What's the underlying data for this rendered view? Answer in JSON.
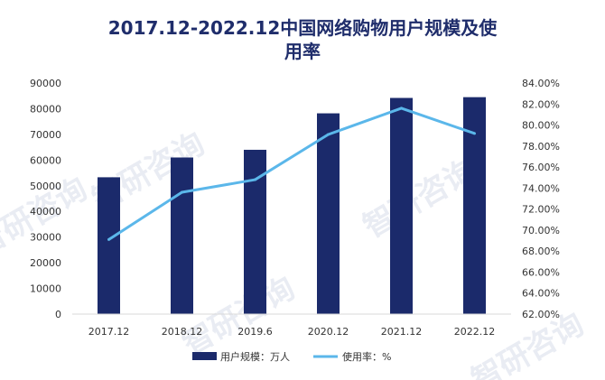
{
  "chart_data": {
    "type": "bar+line",
    "title": "2017.12-2022.12中国网络购物用户规模及使用率",
    "title_lines": [
      "2017.12-2022.12中国网络购物用户规模及使",
      "用率"
    ],
    "categories": [
      "2017.12",
      "2018.12",
      "2019.6",
      "2020.12",
      "2021.12",
      "2022.12"
    ],
    "series": [
      {
        "name": "用户规模：万人",
        "type": "bar",
        "axis": "left",
        "color": "#1b2a6b",
        "values": [
          53300,
          61000,
          64000,
          78200,
          84200,
          84500
        ]
      },
      {
        "name": "使用率：%",
        "type": "line",
        "axis": "right",
        "color": "#5bb7ea",
        "values": [
          69.1,
          73.6,
          74.8,
          79.1,
          81.6,
          79.2
        ]
      }
    ],
    "y_left": {
      "min": 0,
      "max": 90000,
      "step": 10000,
      "ticks": [
        "0",
        "10000",
        "20000",
        "30000",
        "40000",
        "50000",
        "60000",
        "70000",
        "80000",
        "90000"
      ]
    },
    "y_right": {
      "min": 62,
      "max": 84,
      "step": 2,
      "ticks": [
        "62.00%",
        "64.00%",
        "66.00%",
        "68.00%",
        "70.00%",
        "72.00%",
        "74.00%",
        "76.00%",
        "78.00%",
        "80.00%",
        "82.00%",
        "84.00%"
      ]
    },
    "legend_position": "bottom",
    "watermark_text": "智研咨询"
  }
}
